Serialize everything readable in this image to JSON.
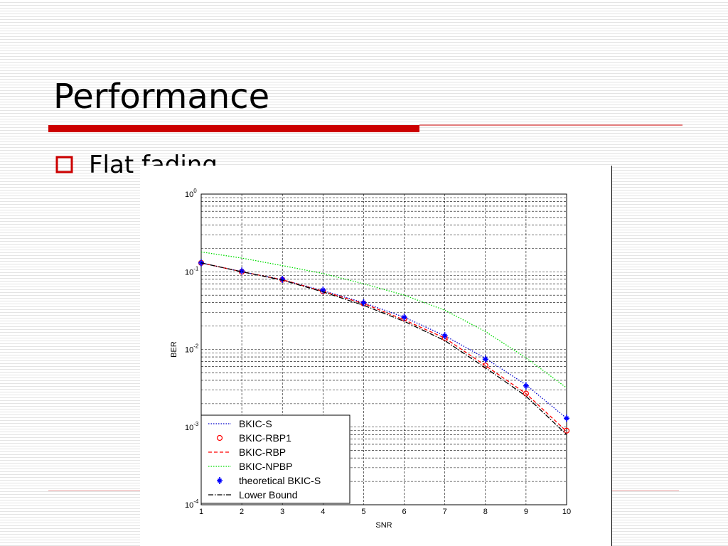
{
  "slide": {
    "title": "Performance",
    "bullet": "Flat fading"
  },
  "chart_data": {
    "type": "line",
    "log_y": true,
    "grid": true,
    "xlabel": "SNR",
    "ylabel": "BER",
    "x": [
      1,
      2,
      3,
      4,
      5,
      6,
      7,
      8,
      9,
      10
    ],
    "xlim": [
      1,
      10
    ],
    "xticks": [
      1,
      2,
      3,
      4,
      5,
      6,
      7,
      8,
      9,
      10
    ],
    "ylim": [
      0.0001,
      1
    ],
    "yticks": [
      {
        "value": 1,
        "label": "10",
        "exponent": "0"
      },
      {
        "value": 0.1,
        "label": "10",
        "exponent": "-1"
      },
      {
        "value": 0.01,
        "label": "10",
        "exponent": "-2"
      },
      {
        "value": 0.001,
        "label": "10",
        "exponent": "-3"
      },
      {
        "value": 0.0001,
        "label": "10",
        "exponent": "-4"
      }
    ],
    "yminor": [
      0.2,
      0.3,
      0.4,
      0.5,
      0.6,
      0.7,
      0.8,
      0.9,
      0.02,
      0.03,
      0.04,
      0.05,
      0.06,
      0.07,
      0.08,
      0.09,
      0.002,
      0.003,
      0.004,
      0.005,
      0.006,
      0.007,
      0.008,
      0.009,
      0.0002,
      0.0003,
      0.0004,
      0.0005,
      0.0006,
      0.0007,
      0.0008,
      0.0009
    ],
    "legend": "lower left",
    "series": [
      {
        "name": "BKIC-S",
        "color": "#0000cc",
        "dash": "dotted",
        "marker": "none",
        "values": [
          0.13,
          0.1,
          0.079,
          0.057,
          0.04,
          0.026,
          0.015,
          0.0077,
          0.0035,
          0.0013
        ]
      },
      {
        "name": "BKIC-RBP1",
        "color": "#ff0000",
        "dash": "none",
        "marker": "circle",
        "values": [
          0.13,
          0.1,
          0.079,
          0.056,
          0.039,
          0.025,
          0.014,
          0.0062,
          0.0027,
          0.0009
        ]
      },
      {
        "name": "BKIC-RBP",
        "color": "#ff0000",
        "dash": "dashed",
        "marker": "none",
        "values": [
          0.13,
          0.1,
          0.079,
          0.056,
          0.039,
          0.024,
          0.014,
          0.0062,
          0.0027,
          0.00088
        ]
      },
      {
        "name": "BKIC-NPBP",
        "color": "#00dd00",
        "dash": "dotted",
        "marker": "none",
        "values": [
          0.18,
          0.15,
          0.12,
          0.095,
          0.07,
          0.05,
          0.032,
          0.017,
          0.0078,
          0.0032
        ]
      },
      {
        "name": "theoretical BKIC-S",
        "color": "#0000ff",
        "dash": "none",
        "marker": "star",
        "values": [
          0.13,
          0.102,
          0.08,
          0.058,
          0.04,
          0.026,
          0.015,
          0.0075,
          0.0034,
          0.0013
        ]
      },
      {
        "name": "Lower Bound",
        "color": "#000000",
        "dash": "dashdot",
        "marker": "none",
        "values": [
          0.13,
          0.1,
          0.078,
          0.055,
          0.037,
          0.023,
          0.013,
          0.0058,
          0.0025,
          0.0008
        ]
      }
    ]
  }
}
